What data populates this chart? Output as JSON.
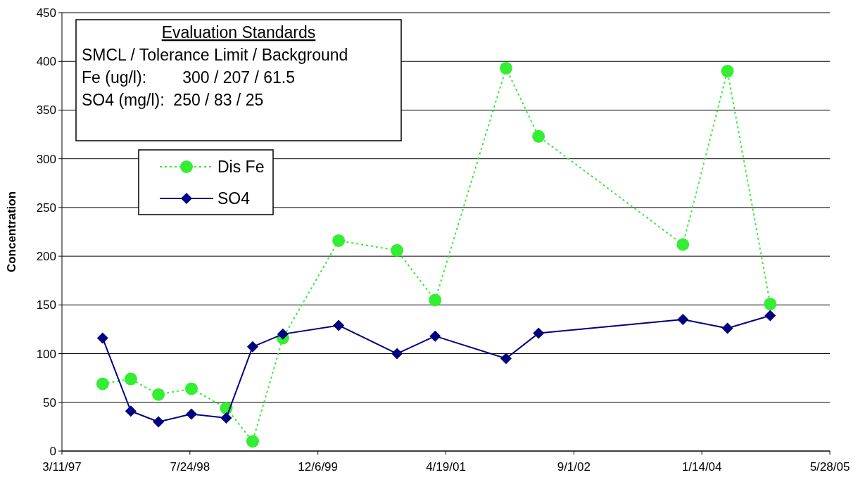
{
  "chart_data": {
    "type": "line",
    "ylabel": "Concentration",
    "annotations": [
      "Evaluation Standards",
      "SMCL / Tolerance Limit / Background",
      "Fe (ug/l):        300 / 207 / 61.5",
      "SO4 (mg/l):  250 / 83 / 25"
    ],
    "x": [
      "1997-08-17",
      "1997-12-05",
      "1998-03-23",
      "1998-07-30",
      "1998-12-13",
      "1999-03-26",
      "1999-07-22",
      "2000-02-25",
      "2000-10-10",
      "2001-03-08",
      "2001-12-10",
      "2002-04-16",
      "2003-11-01",
      "2004-04-23",
      "2004-10-07"
    ],
    "series": [
      {
        "name": "Dis Fe",
        "color": "#33ee33",
        "marker": "circle",
        "line_style": "dotted",
        "values": [
          69,
          74,
          58,
          64,
          44,
          10,
          116,
          216,
          206,
          155,
          393,
          323,
          212,
          390,
          151
        ]
      },
      {
        "name": "SO4",
        "color": "#000080",
        "marker": "diamond",
        "line_style": "solid",
        "values": [
          116,
          41,
          30,
          38,
          34,
          107,
          120,
          129,
          100,
          118,
          95,
          121,
          135,
          126,
          139
        ]
      }
    ],
    "xlim": [
      "1997-03-11",
      "2005-05-28"
    ],
    "xticks": [
      {
        "value": "1997-03-11",
        "label": "3/11/97"
      },
      {
        "value": "1998-07-24",
        "label": "7/24/98"
      },
      {
        "value": "1999-12-06",
        "label": "12/6/99"
      },
      {
        "value": "2001-04-19",
        "label": "4/19/01"
      },
      {
        "value": "2002-09-01",
        "label": "9/1/02"
      },
      {
        "value": "2004-01-14",
        "label": "1/14/04"
      },
      {
        "value": "2005-05-28",
        "label": "5/28/05"
      }
    ],
    "ylim": [
      0,
      450
    ],
    "yticks": [
      0,
      50,
      100,
      150,
      200,
      250,
      300,
      350,
      400,
      450
    ],
    "grid": "y",
    "legend": "top left"
  }
}
